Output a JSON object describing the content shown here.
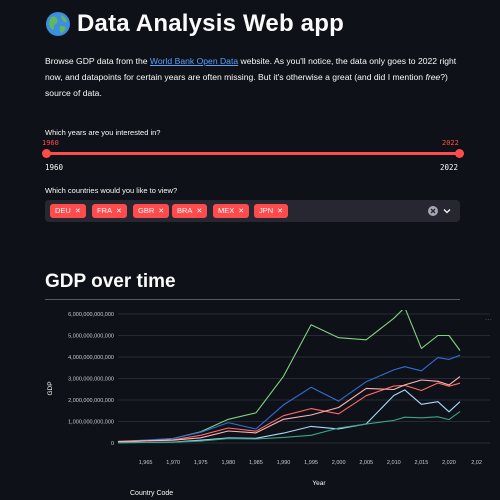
{
  "header": {
    "title": "Data Analysis Web app",
    "icon": "globe-icon"
  },
  "intro": {
    "before_link": "Browse GDP data from the ",
    "link_text": "World Bank Open Data",
    "after_link": " website. As you'll notice, the data only goes to 2022 right now, and datapoints for certain years are often missing. But it's otherwise a great (and did I mention ",
    "italic": "free",
    "after_italic": "?) source of data."
  },
  "year_slider": {
    "label": "Which years are you interested in?",
    "low_value": "1960",
    "high_value": "2022",
    "min_label": "1960",
    "max_label": "2022",
    "accent": "#ff4b4b"
  },
  "country_select": {
    "label": "Which countries would you like to view?",
    "tags": [
      "DEU",
      "FRA",
      "GBR",
      "BRA",
      "MEX",
      "JPN"
    ]
  },
  "section": {
    "title": "GDP over time"
  },
  "legend": {
    "title": "Country Code"
  },
  "chart_data": {
    "type": "line",
    "xlabel": "Year",
    "ylabel": "GDP",
    "xlim": [
      1960,
      2022
    ],
    "ylim": [
      0,
      6000000000000
    ],
    "yticks": [
      "0",
      "1,000,000,000,000",
      "2,000,000,000,000",
      "3,000,000,000,000",
      "4,000,000,000,000",
      "5,000,000,000,000",
      "6,000,000,000,000"
    ],
    "xticks": [
      "1,965",
      "1,970",
      "1,975",
      "1,980",
      "1,985",
      "1,990",
      "1,995",
      "2,000",
      "2,005",
      "2,010",
      "2,015",
      "2,020",
      "2,02"
    ],
    "grid": true,
    "x": [
      1960,
      1965,
      1970,
      1975,
      1980,
      1985,
      1990,
      1995,
      2000,
      2005,
      2010,
      2012,
      2015,
      2018,
      2020,
      2022
    ],
    "series": [
      {
        "color": "#7fd47f",
        "values": [
          45000000000.0,
          90000000000.0,
          210000000000.0,
          520000000000.0,
          1100000000000.0,
          1400000000000.0,
          3100000000000.0,
          5500000000000.0,
          4900000000000.0,
          4800000000000.0,
          5800000000000.0,
          6300000000000.0,
          4400000000000.0,
          5000000000000.0,
          5000000000000.0,
          4300000000000.0
        ]
      },
      {
        "color": "#2f6fd6",
        "values": [
          70000000000.0,
          140000000000.0,
          215000000000.0,
          500000000000.0,
          950000000000.0,
          650000000000.0,
          1770000000000.0,
          2590000000000.0,
          1950000000000.0,
          2850000000000.0,
          3400000000000.0,
          3550000000000.0,
          3360000000000.0,
          3970000000000.0,
          3890000000000.0,
          4080000000000.0
        ]
      },
      {
        "color": "#ff6b6b",
        "values": [
          62000000000.0,
          100000000000.0,
          150000000000.0,
          360000000000.0,
          700000000000.0,
          550000000000.0,
          1270000000000.0,
          1600000000000.0,
          1360000000000.0,
          2200000000000.0,
          2650000000000.0,
          2680000000000.0,
          2440000000000.0,
          2790000000000.0,
          2640000000000.0,
          2780000000000.0
        ]
      },
      {
        "color": "#ffb3b3",
        "values": [
          73000000000.0,
          100000000000.0,
          130000000000.0,
          240000000000.0,
          560000000000.0,
          470000000000.0,
          1100000000000.0,
          1300000000000.0,
          1650000000000.0,
          2540000000000.0,
          2490000000000.0,
          2700000000000.0,
          2930000000000.0,
          2870000000000.0,
          2700000000000.0,
          3090000000000.0
        ]
      },
      {
        "color": "#a8d8ff",
        "values": [
          15000000000.0,
          25000000000.0,
          42000000000.0,
          130000000000.0,
          235000000000.0,
          220000000000.0,
          460000000000.0,
          770000000000.0,
          655000000000.0,
          890000000000.0,
          2210000000000.0,
          2470000000000.0,
          1800000000000.0,
          1920000000000.0,
          1450000000000.0,
          1920000000000.0
        ]
      },
      {
        "color": "#3aa58a",
        "values": [
          13000000000.0,
          21000000000.0,
          35000000000.0,
          88000000000.0,
          205000000000.0,
          185000000000.0,
          260000000000.0,
          360000000000.0,
          700000000000.0,
          880000000000.0,
          1050000000000.0,
          1200000000000.0,
          1170000000000.0,
          1220000000000.0,
          1090000000000.0,
          1460000000000.0
        ]
      }
    ]
  }
}
